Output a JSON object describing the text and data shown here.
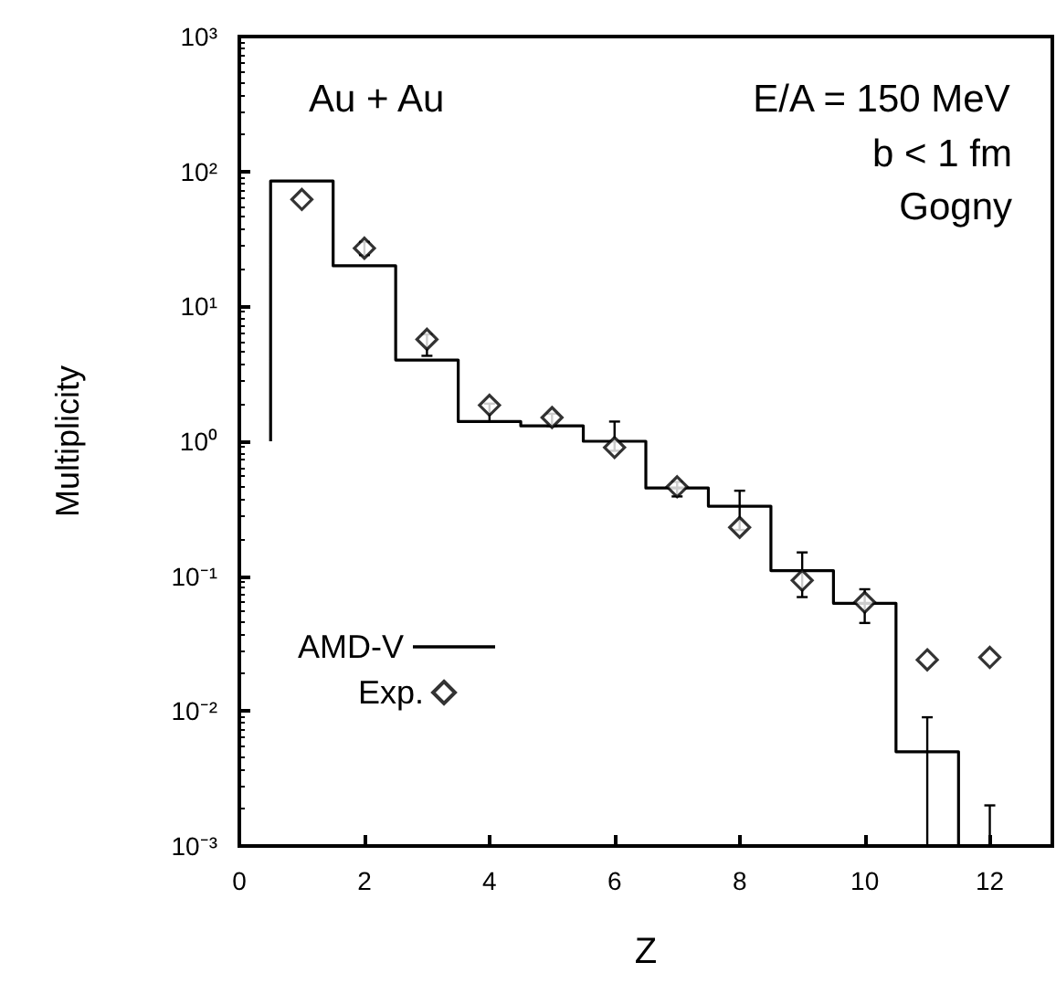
{
  "chart_data": {
    "type": "scatter",
    "xlabel": "Z",
    "ylabel": "Multiplicity",
    "xlim": [
      0,
      13
    ],
    "xticks": [
      0,
      2,
      4,
      6,
      8,
      10,
      12
    ],
    "ylim": [
      0.001,
      1000
    ],
    "log": "y",
    "yticks": [
      {
        "value": 0.001,
        "label": "10⁻³"
      },
      {
        "value": 0.01,
        "label": "10⁻²"
      },
      {
        "value": 0.1,
        "label": "10⁻¹"
      },
      {
        "value": 1,
        "label": "10⁰"
      },
      {
        "value": 10,
        "label": "10¹"
      },
      {
        "value": 100,
        "label": "10²"
      },
      {
        "value": 1000,
        "label": "10³"
      }
    ],
    "grid": false,
    "legend": "bottom left",
    "annotations": [
      "Au + Au",
      "E/A = 150 MeV",
      "b < 1 fm",
      "Gogny"
    ],
    "series": [
      {
        "name": "AMD-V",
        "type": "step",
        "color": "#000000",
        "marker": "none",
        "line_style": "solid",
        "x": [
          0.5,
          0.5,
          1.5,
          2.5,
          3.5,
          4.5,
          5.5,
          6.5,
          7.5,
          8.5,
          9.5,
          10.5,
          11.5
        ],
        "values": [
          1,
          85,
          20,
          4,
          1.4,
          1.3,
          1.0,
          0.45,
          0.33,
          0.11,
          0.063,
          0.005,
          0.001
        ]
      },
      {
        "name": "Exp.",
        "color": "#000000",
        "marker": "diamond",
        "x": [
          1,
          2,
          3,
          4,
          5,
          6,
          7,
          8,
          9,
          10,
          11,
          12
        ],
        "values": [
          62,
          27,
          5.7,
          1.85,
          1.5,
          0.9,
          0.46,
          0.23,
          0.093,
          0.064,
          0.024,
          0.025
        ],
        "errors": [
          null,
          [
            24,
            30
          ],
          [
            4.3,
            6.2
          ],
          [
            1.4,
            1.9
          ],
          [
            1.3,
            1.6
          ],
          [
            0.85,
            1.4
          ],
          [
            0.39,
            0.5
          ],
          [
            0.22,
            0.43
          ],
          [
            0.07,
            0.15
          ],
          [
            0.045,
            0.08
          ],
          [
            0.001,
            0.009
          ],
          [
            0.001,
            0.002
          ]
        ]
      }
    ]
  }
}
